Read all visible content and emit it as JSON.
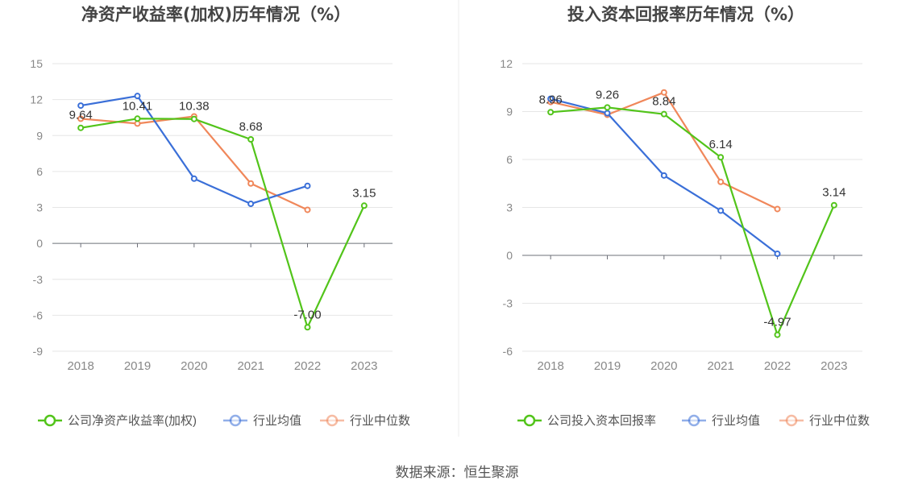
{
  "source_text": "数据来源：恒生聚源",
  "chart_data": [
    {
      "type": "line",
      "title": "净资产收益率(加权)历年情况（%）",
      "categories": [
        "2018",
        "2019",
        "2020",
        "2021",
        "2022",
        "2023"
      ],
      "ylim": [
        -9,
        15
      ],
      "yticks": [
        15,
        12,
        9,
        6,
        3,
        0,
        -3,
        -6,
        -9
      ],
      "grid": true,
      "legend_position": "bottom",
      "series": [
        {
          "name": "公司净资产收益率(加权)",
          "color": "#52c41a",
          "values": [
            9.64,
            10.41,
            10.38,
            8.68,
            -7.0,
            3.15
          ],
          "labels": [
            "9.64",
            "10.41",
            "10.38",
            "8.68",
            "-7.00",
            "3.15"
          ]
        },
        {
          "name": "行业均值",
          "color": "#3a6fd8",
          "values": [
            11.5,
            12.3,
            5.4,
            3.3,
            4.8,
            null
          ]
        },
        {
          "name": "行业中位数",
          "color": "#f0875a",
          "values": [
            10.4,
            10.0,
            10.6,
            5.0,
            2.8,
            null
          ]
        }
      ]
    },
    {
      "type": "line",
      "title": "投入资本回报率历年情况（%）",
      "categories": [
        "2018",
        "2019",
        "2020",
        "2021",
        "2022",
        "2023"
      ],
      "ylim": [
        -6,
        12
      ],
      "yticks": [
        12,
        9,
        6,
        3,
        0,
        -3,
        -6
      ],
      "grid": true,
      "legend_position": "bottom",
      "series": [
        {
          "name": "公司投入资本回报率",
          "color": "#52c41a",
          "values": [
            8.96,
            9.26,
            8.84,
            6.14,
            -4.97,
            3.14
          ],
          "labels": [
            "8.96",
            "9.26",
            "8.84",
            "6.14",
            "-4.97",
            "3.14"
          ]
        },
        {
          "name": "行业均值",
          "color": "#3a6fd8",
          "values": [
            9.8,
            8.9,
            5.0,
            2.8,
            0.1,
            null
          ]
        },
        {
          "name": "行业中位数",
          "color": "#f0875a",
          "values": [
            9.6,
            8.8,
            10.2,
            4.6,
            2.9,
            null
          ]
        }
      ]
    }
  ]
}
